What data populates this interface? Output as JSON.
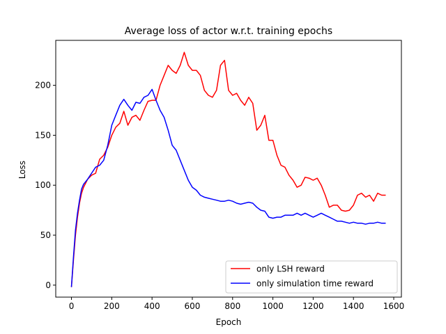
{
  "chart_data": {
    "type": "line",
    "title": "Average loss of actor w.r.t. training epochs",
    "xlabel": "Epoch",
    "ylabel": "Loss",
    "xlim": [
      -78,
      1638
    ],
    "ylim": [
      -12,
      245
    ],
    "xticks": [
      0,
      200,
      400,
      600,
      800,
      1000,
      1200,
      1400,
      1600
    ],
    "yticks": [
      0,
      50,
      100,
      150,
      200
    ],
    "grid": false,
    "legend_position": "lower-right",
    "series": [
      {
        "name": "only LSH reward",
        "color": "#ff0000",
        "x": [
          0,
          10,
          20,
          30,
          40,
          50,
          60,
          80,
          100,
          120,
          140,
          160,
          180,
          200,
          220,
          240,
          260,
          280,
          300,
          320,
          340,
          360,
          380,
          400,
          420,
          440,
          460,
          480,
          500,
          520,
          540,
          560,
          580,
          600,
          620,
          640,
          660,
          680,
          700,
          720,
          740,
          760,
          780,
          800,
          820,
          840,
          860,
          880,
          900,
          920,
          940,
          960,
          980,
          1000,
          1020,
          1040,
          1060,
          1080,
          1100,
          1120,
          1140,
          1160,
          1180,
          1200,
          1220,
          1240,
          1260,
          1280,
          1300,
          1320,
          1340,
          1360,
          1380,
          1400,
          1420,
          1440,
          1460,
          1480,
          1500,
          1520,
          1540,
          1560
        ],
        "y": [
          -2,
          25,
          50,
          68,
          82,
          92,
          98,
          106,
          110,
          112,
          126,
          130,
          138,
          150,
          158,
          162,
          174,
          160,
          168,
          170,
          165,
          175,
          184,
          185,
          185,
          200,
          210,
          220,
          215,
          212,
          220,
          233,
          220,
          215,
          215,
          210,
          195,
          190,
          188,
          195,
          220,
          225,
          195,
          190,
          192,
          185,
          180,
          188,
          182,
          155,
          160,
          170,
          145,
          145,
          130,
          120,
          118,
          110,
          105,
          98,
          100,
          108,
          107,
          105,
          107,
          100,
          90,
          78,
          80,
          80,
          75,
          74,
          75,
          80,
          90,
          92,
          88,
          90,
          84,
          92,
          90,
          90
        ]
      },
      {
        "name": "only simulation time reward",
        "color": "#0000ff",
        "x": [
          0,
          10,
          20,
          30,
          40,
          50,
          60,
          80,
          100,
          120,
          140,
          160,
          180,
          200,
          220,
          240,
          260,
          280,
          300,
          320,
          340,
          360,
          380,
          400,
          420,
          440,
          460,
          480,
          500,
          520,
          540,
          560,
          580,
          600,
          620,
          640,
          660,
          680,
          700,
          720,
          740,
          760,
          780,
          800,
          820,
          840,
          860,
          880,
          900,
          920,
          940,
          960,
          980,
          1000,
          1020,
          1040,
          1060,
          1080,
          1100,
          1120,
          1140,
          1160,
          1180,
          1200,
          1220,
          1240,
          1260,
          1280,
          1300,
          1320,
          1340,
          1360,
          1380,
          1400,
          1420,
          1440,
          1460,
          1480,
          1500,
          1520,
          1540,
          1560
        ],
        "y": [
          -2,
          28,
          55,
          72,
          85,
          96,
          101,
          106,
          112,
          118,
          120,
          125,
          140,
          160,
          170,
          180,
          186,
          180,
          175,
          183,
          182,
          188,
          190,
          196,
          185,
          175,
          168,
          155,
          140,
          135,
          125,
          115,
          105,
          98,
          95,
          90,
          88,
          87,
          86,
          85,
          84,
          84,
          85,
          84,
          82,
          81,
          82,
          83,
          82,
          78,
          75,
          74,
          68,
          67,
          68,
          68,
          70,
          70,
          70,
          72,
          70,
          72,
          70,
          68,
          70,
          72,
          70,
          68,
          66,
          64,
          64,
          63,
          62,
          63,
          62,
          62,
          61,
          62,
          62,
          63,
          62,
          62
        ]
      }
    ]
  }
}
